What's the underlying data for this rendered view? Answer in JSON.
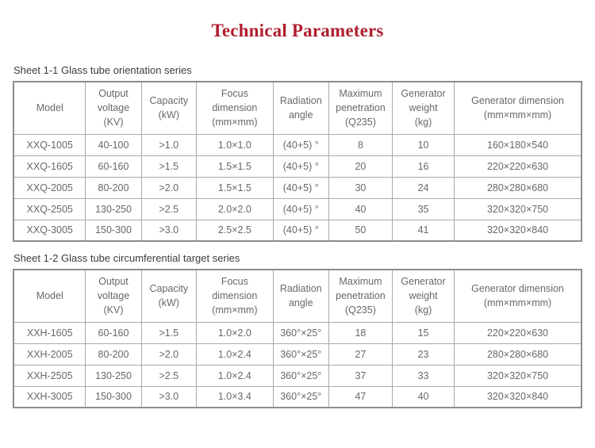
{
  "title": "Technical Parameters",
  "colors": {
    "title": "#b01e2e",
    "table_border_outer": "#8d8d8d",
    "table_border_inner": "#a9a9a9",
    "cell_text": "#686868",
    "caption_text": "#3c3c3c"
  },
  "column_widths_pct": [
    12.7,
    9.8,
    9.7,
    13.5,
    9.8,
    11.2,
    10.9,
    22.4
  ],
  "tables": [
    {
      "caption": "Sheet 1-1 Glass tube orientation series",
      "headers": [
        [
          "Model"
        ],
        [
          "Output",
          "voltage",
          "(KV)"
        ],
        [
          "Capacity",
          "(kW)"
        ],
        [
          "Focus",
          "dimension",
          "(mm×mm)"
        ],
        [
          "Radiation",
          "angle"
        ],
        [
          "Maximum",
          "penetration",
          "(Q235)"
        ],
        [
          "Generator",
          "weight",
          "(kg)"
        ],
        [
          "Generator dimension",
          "(mm×mm×mm)"
        ]
      ],
      "rows": [
        [
          "XXQ-1005",
          "40-100",
          ">1.0",
          "1.0×1.0",
          "(40+5) °",
          "8",
          "10",
          "160×180×540"
        ],
        [
          "XXQ-1605",
          "60-160",
          ">1.5",
          "1.5×1.5",
          "(40+5) °",
          "20",
          "16",
          "220×220×630"
        ],
        [
          "XXQ-2005",
          "80-200",
          ">2.0",
          "1.5×1.5",
          "(40+5) °",
          "30",
          "24",
          "280×280×680"
        ],
        [
          "XXQ-2505",
          "130-250",
          ">2.5",
          "2.0×2.0",
          "(40+5) °",
          "40",
          "35",
          "320×320×750"
        ],
        [
          "XXQ-3005",
          "150-300",
          ">3.0",
          "2.5×2.5",
          "(40+5) °",
          "50",
          "41",
          "320×320×840"
        ]
      ]
    },
    {
      "caption": "Sheet 1-2 Glass tube circumferential target series",
      "headers": [
        [
          "Model"
        ],
        [
          "Output",
          "voltage",
          "(KV)"
        ],
        [
          "Capacity",
          "(kW)"
        ],
        [
          "Focus",
          "dimension",
          "(mm×mm)"
        ],
        [
          "Radiation",
          "angle"
        ],
        [
          "Maximum",
          "penetration",
          "(Q235)"
        ],
        [
          "Generator",
          "weight",
          "(kg)"
        ],
        [
          "Generator dimension",
          "(mm×mm×mm)"
        ]
      ],
      "rows": [
        [
          "XXH-1605",
          "60-160",
          ">1.5",
          "1.0×2.0",
          "360°×25°",
          "18",
          "15",
          "220×220×630"
        ],
        [
          "XXH-2005",
          "80-200",
          ">2.0",
          "1.0×2.4",
          "360°×25°",
          "27",
          "23",
          "280×280×680"
        ],
        [
          "XXH-2505",
          "130-250",
          ">2.5",
          "1.0×2.4",
          "360°×25°",
          "37",
          "33",
          "320×320×750"
        ],
        [
          "XXH-3005",
          "150-300",
          ">3.0",
          "1.0×3.4",
          "360°×25°",
          "47",
          "40",
          "320×320×840"
        ]
      ]
    }
  ]
}
